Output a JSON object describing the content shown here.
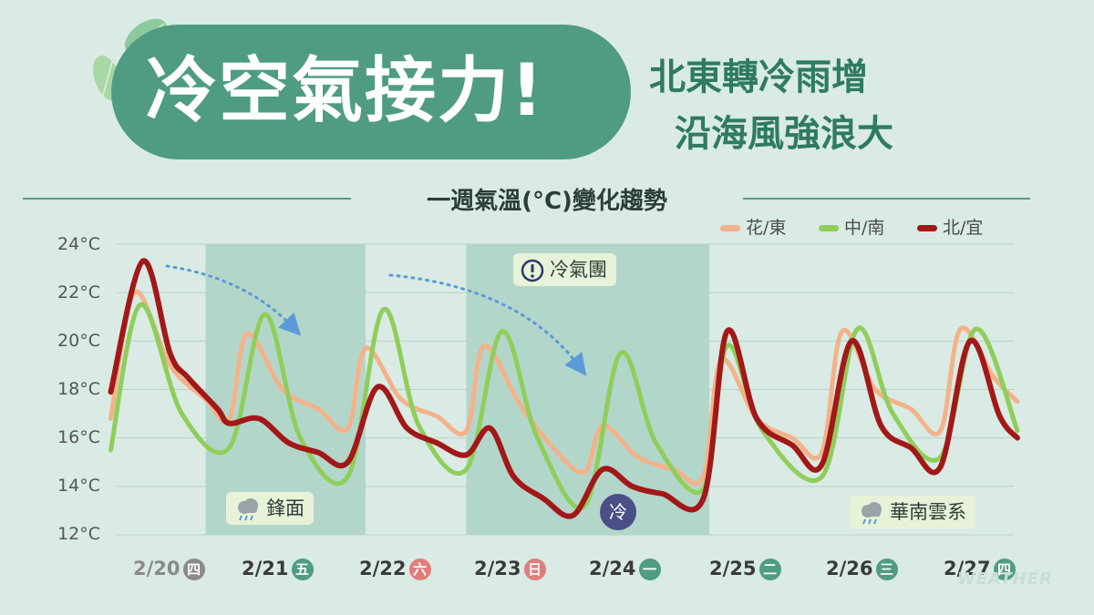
{
  "header": {
    "title": "冷空氣接力!",
    "subtitle_line1": "北東轉冷雨增",
    "subtitle_line2": "沿海風強浪大"
  },
  "section_title": "一週氣溫(°C)變化趨勢",
  "annotations": {
    "front": "鋒面",
    "cold_air_mass": "冷氣團",
    "cold": "冷",
    "south_china_clouds": "華南雲系"
  },
  "watermark": "WEATHER",
  "colors": {
    "background": "#d9ebe4",
    "title_pill": "#4f9c82",
    "shade": "#b3d6cb",
    "hua_dong": "#f3b28a",
    "zhong_nan": "#8fce5a",
    "bei_yi": "#a21818",
    "grid": "#b9d3ca",
    "arrow": "#5a9ad6"
  },
  "chart_data": {
    "type": "line",
    "ylim": [
      12,
      24
    ],
    "yticks": [
      "24°C",
      "22°C",
      "20°C",
      "18°C",
      "16°C",
      "14°C",
      "12°C"
    ],
    "ytick_values": [
      24,
      22,
      20,
      18,
      16,
      14,
      12
    ],
    "grid": true,
    "legend_position": "top-right",
    "x_days": [
      {
        "date": "2/20",
        "weekday": "四",
        "color": "#8a8a8a"
      },
      {
        "date": "2/21",
        "weekday": "五",
        "color": "#4f9c82"
      },
      {
        "date": "2/22",
        "weekday": "六",
        "color": "#e27d7d"
      },
      {
        "date": "2/23",
        "weekday": "日",
        "color": "#e27d7d"
      },
      {
        "date": "2/24",
        "weekday": "一",
        "color": "#4f9c82"
      },
      {
        "date": "2/25",
        "weekday": "二",
        "color": "#4f9c82"
      },
      {
        "date": "2/26",
        "weekday": "三",
        "color": "#4f9c82"
      },
      {
        "date": "2/27",
        "weekday": "四",
        "color": "#4f9c82"
      }
    ],
    "shaded_ranges_day": [
      [
        0.75,
        2.1
      ],
      [
        2.95,
        5.0
      ]
    ],
    "series": [
      {
        "name": "花/東",
        "color": "#f3b28a",
        "points": [
          [
            -0.05,
            16.8
          ],
          [
            0.15,
            22.0
          ],
          [
            0.45,
            19.0
          ],
          [
            0.75,
            17.6
          ],
          [
            0.95,
            16.8
          ],
          [
            1.1,
            20.3
          ],
          [
            1.4,
            18.0
          ],
          [
            1.7,
            17.2
          ],
          [
            1.95,
            16.4
          ],
          [
            2.1,
            19.7
          ],
          [
            2.4,
            17.6
          ],
          [
            2.7,
            16.9
          ],
          [
            2.95,
            16.3
          ],
          [
            3.1,
            19.8
          ],
          [
            3.4,
            17.4
          ],
          [
            3.7,
            15.5
          ],
          [
            3.95,
            14.6
          ],
          [
            4.1,
            16.5
          ],
          [
            4.4,
            15.2
          ],
          [
            4.7,
            14.7
          ],
          [
            4.95,
            14.4
          ],
          [
            5.1,
            19.2
          ],
          [
            5.4,
            16.8
          ],
          [
            5.7,
            16.0
          ],
          [
            5.95,
            15.4
          ],
          [
            6.12,
            20.4
          ],
          [
            6.4,
            18.0
          ],
          [
            6.7,
            17.2
          ],
          [
            6.95,
            16.3
          ],
          [
            7.12,
            20.5
          ],
          [
            7.4,
            18.5
          ],
          [
            7.6,
            17.5
          ]
        ]
      },
      {
        "name": "中/南",
        "color": "#8fce5a",
        "points": [
          [
            -0.05,
            15.5
          ],
          [
            0.2,
            21.5
          ],
          [
            0.55,
            17.0
          ],
          [
            0.95,
            15.6
          ],
          [
            1.25,
            21.1
          ],
          [
            1.55,
            16.0
          ],
          [
            1.95,
            14.4
          ],
          [
            2.25,
            21.3
          ],
          [
            2.55,
            16.5
          ],
          [
            2.95,
            14.7
          ],
          [
            3.25,
            20.4
          ],
          [
            3.55,
            16.0
          ],
          [
            3.95,
            13.2
          ],
          [
            4.25,
            19.5
          ],
          [
            4.55,
            15.8
          ],
          [
            4.95,
            13.9
          ],
          [
            5.15,
            19.8
          ],
          [
            5.45,
            16.3
          ],
          [
            5.95,
            14.4
          ],
          [
            6.25,
            20.5
          ],
          [
            6.55,
            17.0
          ],
          [
            6.95,
            15.2
          ],
          [
            7.25,
            20.5
          ],
          [
            7.6,
            16.3
          ]
        ]
      },
      {
        "name": "北/宜",
        "color": "#a21818",
        "points": [
          [
            -0.05,
            17.9
          ],
          [
            0.22,
            23.3
          ],
          [
            0.45,
            19.5
          ],
          [
            0.6,
            18.5
          ],
          [
            0.85,
            17.2
          ],
          [
            0.95,
            16.6
          ],
          [
            1.2,
            16.8
          ],
          [
            1.45,
            15.8
          ],
          [
            1.7,
            15.4
          ],
          [
            1.95,
            15.0
          ],
          [
            2.2,
            18.1
          ],
          [
            2.45,
            16.4
          ],
          [
            2.7,
            15.8
          ],
          [
            2.95,
            15.3
          ],
          [
            3.15,
            16.4
          ],
          [
            3.35,
            14.4
          ],
          [
            3.6,
            13.5
          ],
          [
            3.85,
            12.8
          ],
          [
            4.1,
            14.7
          ],
          [
            4.35,
            14.0
          ],
          [
            4.6,
            13.7
          ],
          [
            4.95,
            13.5
          ],
          [
            5.15,
            20.4
          ],
          [
            5.4,
            16.8
          ],
          [
            5.7,
            15.7
          ],
          [
            5.95,
            14.9
          ],
          [
            6.2,
            20.0
          ],
          [
            6.45,
            16.5
          ],
          [
            6.7,
            15.6
          ],
          [
            6.95,
            14.8
          ],
          [
            7.2,
            20.0
          ],
          [
            7.45,
            16.9
          ],
          [
            7.6,
            16.0
          ]
        ]
      }
    ]
  }
}
